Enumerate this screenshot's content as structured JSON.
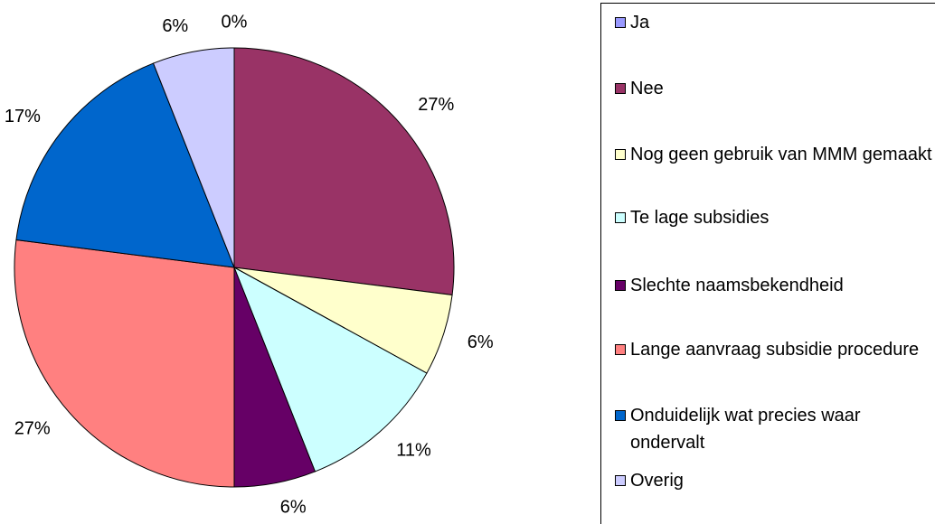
{
  "chart_data": {
    "type": "pie",
    "categories": [
      "Ja",
      "Nee",
      "Nog geen gebruik van MMM gemaakt",
      "Te lage subsidies",
      "Slechte naamsbekendheid",
      "Lange aanvraag subsidie procedure",
      "Onduidelijk wat precies waar ondervalt",
      "Overig"
    ],
    "values": [
      0,
      27,
      6,
      11,
      6,
      27,
      17,
      6
    ],
    "value_labels": [
      "0%",
      "27%",
      "6%",
      "11%",
      "6%",
      "27%",
      "17%",
      "6%"
    ],
    "colors": [
      "#9999ff",
      "#993366",
      "#ffffcc",
      "#ccffff",
      "#660066",
      "#ff8080",
      "#0066cc",
      "#ccccff"
    ]
  }
}
